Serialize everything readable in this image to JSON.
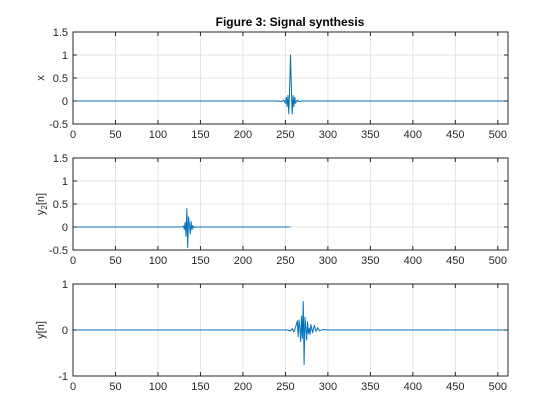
{
  "title": "Figure 3: Signal synthesis",
  "chart_data": [
    {
      "type": "line",
      "ylabel": "x",
      "xlim": [
        0,
        512
      ],
      "ylim": [
        -0.5,
        1.5
      ],
      "xticks": [
        0,
        50,
        100,
        150,
        200,
        250,
        300,
        350,
        400,
        450,
        500
      ],
      "yticks": [
        -0.5,
        0,
        0.5,
        1,
        1.5
      ],
      "xtick_labels": [
        "0",
        "50",
        "100",
        "150",
        "200",
        "250",
        "300",
        "350",
        "400",
        "450",
        "500"
      ],
      "ytick_labels": [
        "-0.5",
        "0",
        "0.5",
        "1",
        "1.5"
      ],
      "grid": true,
      "color": "#0072BD",
      "series": [
        {
          "x": [
            0,
            240,
            246,
            248,
            250,
            251,
            252,
            253,
            254,
            255,
            256,
            257,
            258,
            259,
            260,
            261,
            262,
            264,
            266,
            270,
            512
          ],
          "y": [
            0,
            0,
            -0.01,
            0.02,
            -0.05,
            0.08,
            -0.12,
            0.12,
            -0.28,
            0.28,
            1.0,
            0.28,
            -0.28,
            0.12,
            -0.12,
            0.08,
            -0.05,
            0.02,
            -0.01,
            0,
            0
          ]
        }
      ]
    },
    {
      "type": "line",
      "ylabel": "y2[n]",
      "xlim": [
        0,
        512
      ],
      "ylim": [
        -0.5,
        1.5
      ],
      "xticks": [
        0,
        50,
        100,
        150,
        200,
        250,
        300,
        350,
        400,
        450,
        500
      ],
      "yticks": [
        -0.5,
        0,
        0.5,
        1,
        1.5
      ],
      "xtick_labels": [
        "0",
        "50",
        "100",
        "150",
        "200",
        "250",
        "300",
        "350",
        "400",
        "450",
        "500"
      ],
      "ytick_labels": [
        "-0.5",
        "0",
        "0.5",
        "1",
        "1.5"
      ],
      "grid": true,
      "color": "#0072BD",
      "series": [
        {
          "x": [
            0,
            128,
            130,
            131,
            132,
            133,
            134,
            135,
            136,
            137,
            138,
            139,
            140,
            141,
            142,
            144,
            256
          ],
          "y": [
            0,
            0,
            0.02,
            -0.05,
            0.1,
            -0.2,
            0.4,
            -0.45,
            0.22,
            0.05,
            -0.15,
            0.12,
            -0.06,
            0.03,
            -0.01,
            0,
            0
          ]
        }
      ]
    },
    {
      "type": "line",
      "ylabel": "y[n]",
      "xlim": [
        0,
        512
      ],
      "ylim": [
        -1,
        1
      ],
      "xticks": [
        0,
        50,
        100,
        150,
        200,
        250,
        300,
        350,
        400,
        450,
        500
      ],
      "yticks": [
        -1,
        0,
        1
      ],
      "xtick_labels": [
        "0",
        "50",
        "100",
        "150",
        "200",
        "250",
        "300",
        "350",
        "400",
        "450",
        "500"
      ],
      "ytick_labels": [
        "-1",
        "0",
        "1"
      ],
      "grid": true,
      "color": "#0072BD",
      "series": [
        {
          "x": [
            0,
            252,
            256,
            258,
            260,
            262,
            264,
            265,
            266,
            267,
            268,
            269,
            270,
            271,
            272,
            273,
            274,
            275,
            276,
            277,
            278,
            279,
            280,
            282,
            284,
            286,
            288,
            290,
            294,
            300,
            512
          ],
          "y": [
            0,
            0,
            -0.02,
            0.03,
            -0.04,
            0.06,
            0.2,
            -0.15,
            0.22,
            0.05,
            -0.25,
            0.3,
            -0.18,
            0.62,
            -0.75,
            0.28,
            0.05,
            -0.22,
            0.18,
            -0.08,
            0.04,
            -0.1,
            0.12,
            -0.06,
            0.1,
            -0.03,
            0.05,
            -0.02,
            0.01,
            0,
            0
          ]
        }
      ]
    }
  ]
}
